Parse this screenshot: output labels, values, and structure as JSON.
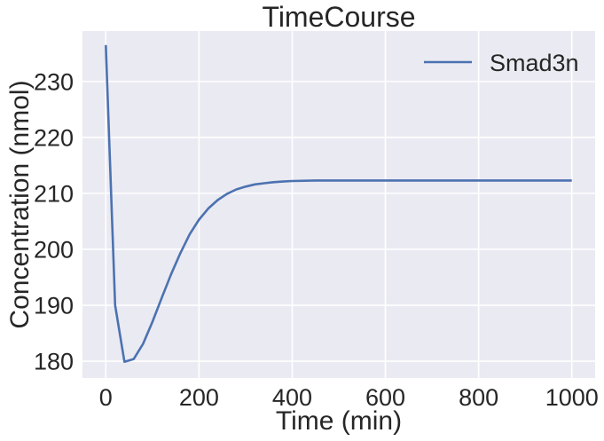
{
  "chart_data": {
    "type": "line",
    "title": "TimeCourse",
    "xlabel": "Time (min)",
    "ylabel": "Concentration (nmol)",
    "xlim": [
      -50,
      1050
    ],
    "ylim": [
      177,
      239
    ],
    "xticks": [
      0,
      200,
      400,
      600,
      800,
      1000
    ],
    "yticks": [
      180,
      190,
      200,
      210,
      220,
      230
    ],
    "grid": true,
    "legend_position": "top-right",
    "colors": {
      "background": "#eaeaf2",
      "grid": "#ffffff",
      "series": "#4c72b0",
      "text": "#262626"
    },
    "series": [
      {
        "name": "Smad3n",
        "x": [
          0,
          20,
          40,
          60,
          80,
          100,
          120,
          140,
          160,
          180,
          200,
          220,
          240,
          260,
          280,
          300,
          320,
          340,
          360,
          380,
          400,
          450,
          500,
          600,
          700,
          800,
          900,
          1000
        ],
        "y": [
          236.5,
          190.0,
          179.9,
          180.4,
          183.1,
          187.0,
          191.3,
          195.5,
          199.3,
          202.7,
          205.3,
          207.3,
          208.8,
          209.9,
          210.7,
          211.2,
          211.6,
          211.8,
          212.0,
          212.1,
          212.2,
          212.3,
          212.3,
          212.3,
          212.3,
          212.3,
          212.3,
          212.3
        ]
      }
    ]
  }
}
